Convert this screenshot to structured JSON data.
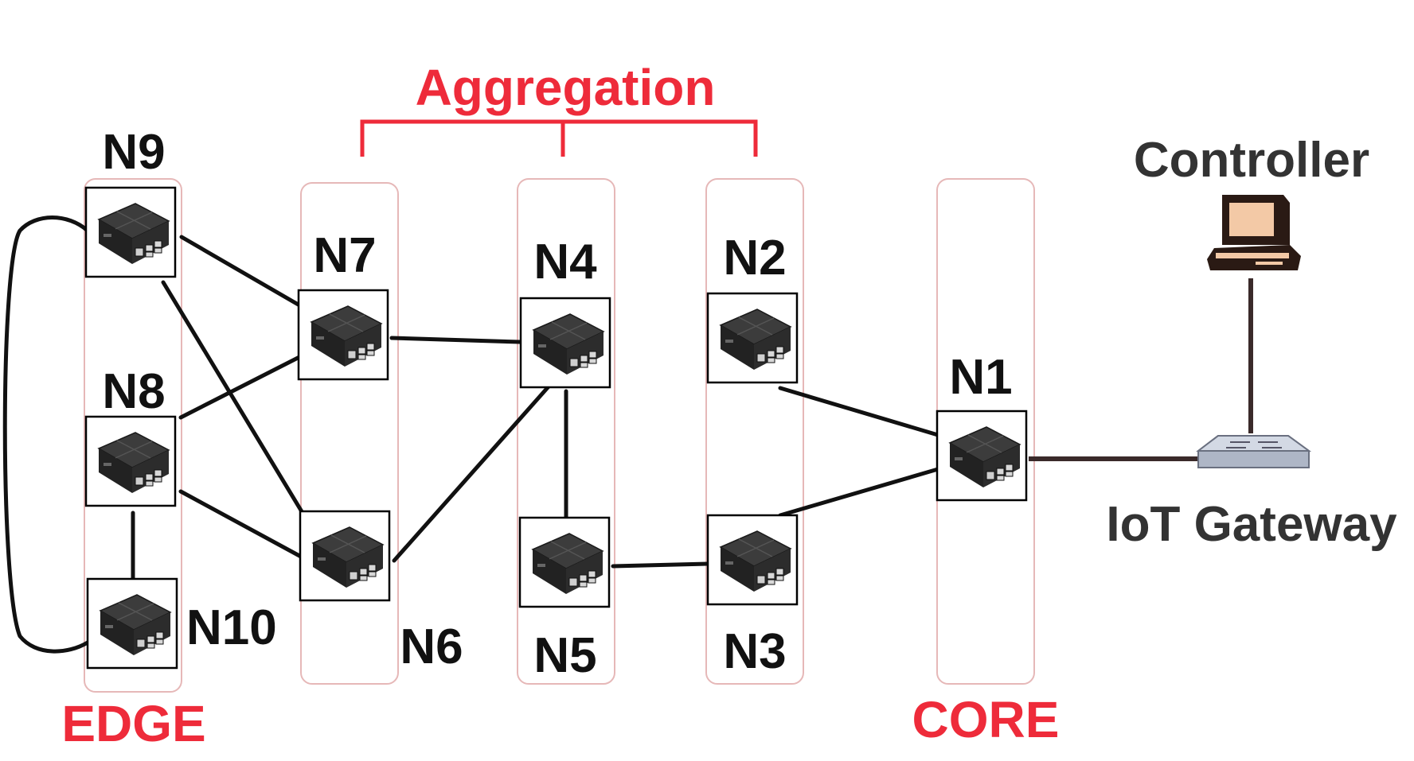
{
  "tiers": {
    "edge": "EDGE",
    "aggregation": "Aggregation",
    "core": "CORE"
  },
  "nodes": {
    "n1": "N1",
    "n2": "N2",
    "n3": "N3",
    "n4": "N4",
    "n5": "N5",
    "n6": "N6",
    "n7": "N7",
    "n8": "N8",
    "n9": "N9",
    "n10": "N10"
  },
  "devices": {
    "controller": "Controller",
    "gateway": "IoT Gateway"
  },
  "icons": {
    "node": "raspberry-pi-icon",
    "controller": "computer-icon",
    "gateway": "switch-icon"
  },
  "colors": {
    "tier_label": "#ee2b3a",
    "link": "#111111",
    "gateway_link": "#3a2a2a",
    "column_outline": "#e6b8b8"
  },
  "links": [
    [
      "n9",
      "n7"
    ],
    [
      "n9",
      "n6"
    ],
    [
      "n8",
      "n7"
    ],
    [
      "n8",
      "n6"
    ],
    [
      "n8",
      "n10"
    ],
    [
      "n9",
      "n10"
    ],
    [
      "n7",
      "n4"
    ],
    [
      "n6",
      "n4"
    ],
    [
      "n4",
      "n5"
    ],
    [
      "n5",
      "n3"
    ],
    [
      "n2",
      "n1"
    ],
    [
      "n3",
      "n1"
    ],
    [
      "n1",
      "gateway"
    ],
    [
      "controller",
      "gateway"
    ]
  ]
}
